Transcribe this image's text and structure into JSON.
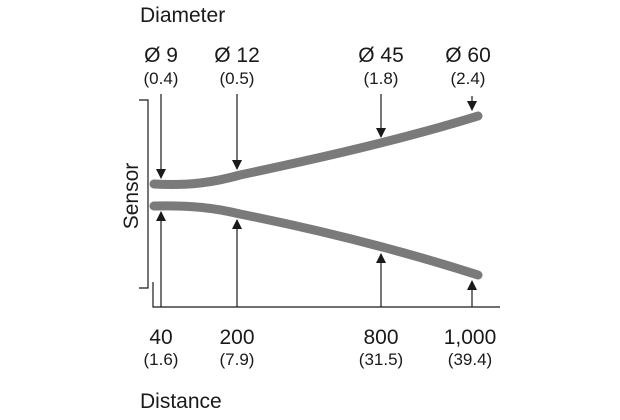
{
  "title_top": "Diameter",
  "title_bottom": "Distance",
  "sensor_label": "Sensor",
  "diameters": [
    {
      "main": "Ø 9",
      "sub": "(0.4)"
    },
    {
      "main": "Ø 12",
      "sub": "(0.5)"
    },
    {
      "main": "Ø 45",
      "sub": "(1.8)"
    },
    {
      "main": "Ø 60",
      "sub": "(2.4)"
    }
  ],
  "distances": [
    {
      "main": "40",
      "sub": "(1.6)"
    },
    {
      "main": "200",
      "sub": "(7.9)"
    },
    {
      "main": "800",
      "sub": "(31.5)"
    },
    {
      "main": "1,000",
      "sub": "(39.4)"
    }
  ],
  "colors": {
    "beam": "#7a7a7a",
    "line": "#1a1a1a"
  }
}
